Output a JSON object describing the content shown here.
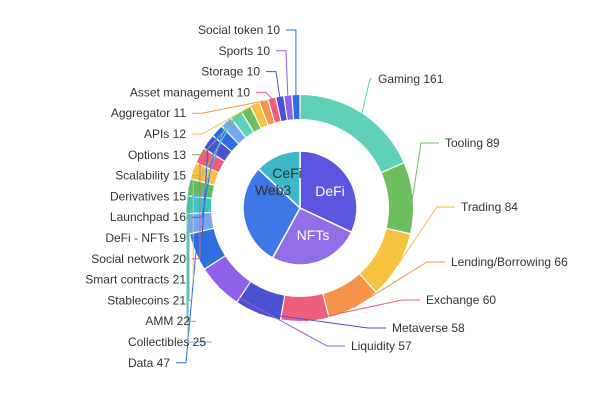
{
  "chart_data": {
    "type": "pie",
    "inner": {
      "slices": [
        {
          "label": "DeFi",
          "value": 32,
          "color": "#5b55e0"
        },
        {
          "label": "NFTs",
          "value": 26,
          "color": "#8f6ee6"
        },
        {
          "label": "Web3",
          "value": 29,
          "color": "#3f77e6"
        },
        {
          "label": "CeFi",
          "value": 13,
          "color": "#3cb8c8"
        }
      ]
    },
    "outer": {
      "slices": [
        {
          "label": "Gaming",
          "value": 161,
          "color": "#5fd1b8"
        },
        {
          "label": "Tooling",
          "value": 89,
          "color": "#6cbe5f"
        },
        {
          "label": "Trading",
          "value": 84,
          "color": "#f5c242"
        },
        {
          "label": "Lending/Borrowing",
          "value": 66,
          "color": "#f5934a"
        },
        {
          "label": "Exchange",
          "value": 60,
          "color": "#ef5d7c"
        },
        {
          "label": "Metaverse",
          "value": 58,
          "color": "#4a52cf"
        },
        {
          "label": "Liquidity",
          "value": 57,
          "color": "#9061e8"
        },
        {
          "label": "Data",
          "value": 47,
          "color": "#2e6fe0"
        },
        {
          "label": "Collectibles",
          "value": 25,
          "color": "#7aa6f0"
        },
        {
          "label": "AMM",
          "value": 22,
          "color": "#3fc2c2"
        },
        {
          "label": "Stablecoins",
          "value": 21,
          "color": "#5bbf6a"
        },
        {
          "label": "Smart contracts",
          "value": 21,
          "color": "#f5c242"
        },
        {
          "label": "Social network",
          "value": 20,
          "color": "#ef5d7c"
        },
        {
          "label": "DeFi - NFTs",
          "value": 19,
          "color": "#4a52cf"
        },
        {
          "label": "Launchpad",
          "value": 16,
          "color": "#2e6fe0"
        },
        {
          "label": "Derivatives",
          "value": 15,
          "color": "#7aa6f0"
        },
        {
          "label": "Scalability",
          "value": 15,
          "color": "#5fd1b8"
        },
        {
          "label": "Options",
          "value": 13,
          "color": "#6cbe5f"
        },
        {
          "label": "APIs",
          "value": 12,
          "color": "#f5c242"
        },
        {
          "label": "Aggregator",
          "value": 11,
          "color": "#f5934a"
        },
        {
          "label": "Asset management",
          "value": 10,
          "color": "#ef5d7c"
        },
        {
          "label": "Storage",
          "value": 10,
          "color": "#4a52cf"
        },
        {
          "label": "Sports",
          "value": 10,
          "color": "#9061e8"
        },
        {
          "label": "Social token",
          "value": 10,
          "color": "#2e6fe0"
        }
      ]
    }
  }
}
